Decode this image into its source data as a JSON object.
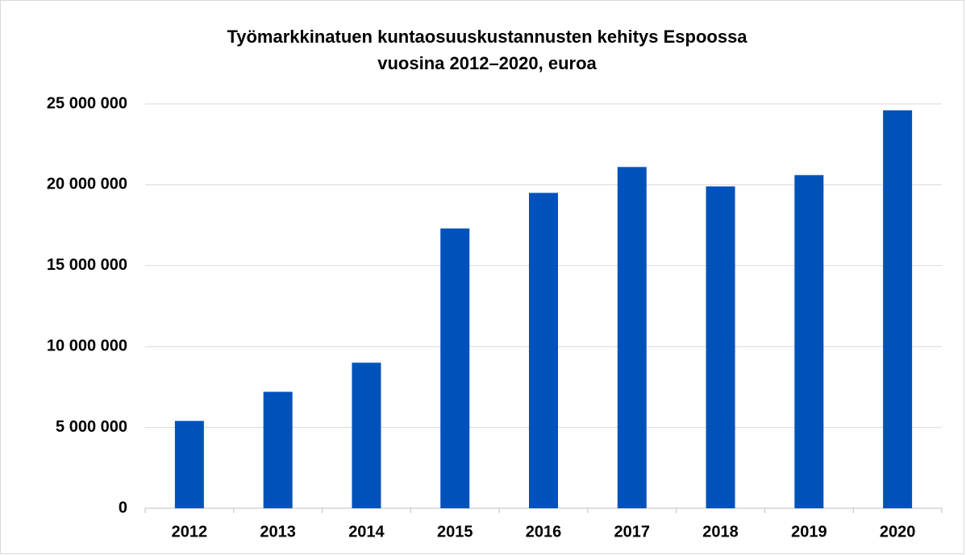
{
  "chart_data": {
    "type": "bar",
    "title": [
      "Työmarkkinatuen kuntaosuuskustannusten kehitys Espoossa",
      "vuosina 2012–2020, euroa"
    ],
    "categories": [
      "2012",
      "2013",
      "2014",
      "2015",
      "2016",
      "2017",
      "2018",
      "2019",
      "2020"
    ],
    "values": [
      5400000,
      7200000,
      9000000,
      17300000,
      19500000,
      21100000,
      19900000,
      20600000,
      24600000
    ],
    "color": "#0052bb",
    "ylim": [
      0,
      25000000
    ],
    "yticks": [
      {
        "value": 0,
        "label": "0"
      },
      {
        "value": 5000000,
        "label": "5 000 000"
      },
      {
        "value": 10000000,
        "label": "10 000 000"
      },
      {
        "value": 15000000,
        "label": "15 000 000"
      },
      {
        "value": 20000000,
        "label": "20 000 000"
      },
      {
        "value": 25000000,
        "label": "25 000 000"
      }
    ],
    "grid": true
  }
}
